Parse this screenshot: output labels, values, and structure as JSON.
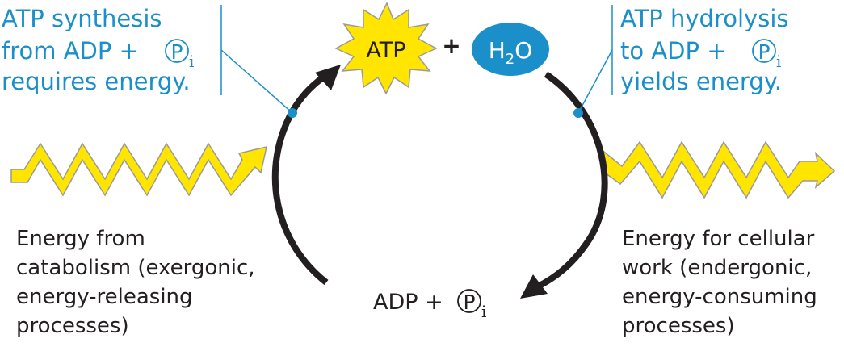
{
  "colors": {
    "accent_blue": "#1a8fc9",
    "energy_yellow": "#ffe500",
    "energy_outline": "#9a9a9a",
    "cycle_arrow": "#231f20",
    "text_dark": "#231f20",
    "background": "#ffffff"
  },
  "top": {
    "atp_label": "ATP",
    "plus": "+",
    "water_label_main": "H",
    "water_label_sub": "2",
    "water_label_end": "O"
  },
  "synthesis_note": {
    "line1": "ATP synthesis",
    "line2_prefix": "from ADP +",
    "phosphate_symbol": "P",
    "phosphate_sub": "i",
    "line3": "requires energy."
  },
  "hydrolysis_note": {
    "line1": "ATP hydrolysis",
    "line2_prefix": "to ADP +",
    "phosphate_symbol": "P",
    "phosphate_sub": "i",
    "line3": "yields energy."
  },
  "catabolism_label": {
    "lines": [
      "Energy from",
      "catabolism (exergonic,",
      "energy-releasing",
      "processes)"
    ]
  },
  "cellular_work_label": {
    "lines": [
      "Energy for cellular",
      "work (endergonic,",
      "energy-consuming",
      "processes)"
    ]
  },
  "bottom": {
    "adp_prefix": "ADP +",
    "phosphate_symbol": "P",
    "phosphate_sub": "i"
  },
  "icons": {
    "atp_burst": "starburst-icon",
    "water_blob": "ellipse-icon",
    "energy_in": "zigzag-arrow-icon",
    "energy_out": "zigzag-arrow-icon",
    "phosphate": "circled-p-icon"
  }
}
